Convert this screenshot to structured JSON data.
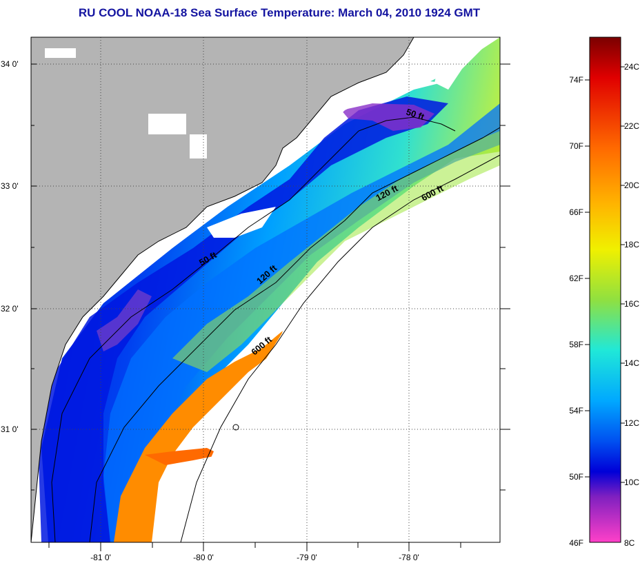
{
  "title": "RU COOL  NOAA-18  Sea Surface Temperature:  March 04, 2010 1924 GMT",
  "map": {
    "lat_labels": [
      "34 0'",
      "33 0'",
      "32 0'",
      "31 0'"
    ],
    "lon_labels": [
      "-81 0'",
      "-80 0'",
      "-79 0'",
      "-78 0'"
    ],
    "depth_contours": [
      "50 ft",
      "50 ft",
      "120 ft",
      "120 ft",
      "600 ft",
      "600 ft"
    ],
    "colors": {
      "land": "#b4b4b4",
      "cloud": "#ffffff",
      "warm": "#ff8c00",
      "cold": "#0010e0"
    }
  },
  "colorbar": {
    "fahrenheit_labels": [
      "74F",
      "70F",
      "66F",
      "62F",
      "58F",
      "54F",
      "50F",
      "46F"
    ],
    "celsius_labels": [
      "24C",
      "22C",
      "20C",
      "18C",
      "16C",
      "14C",
      "12C",
      "10C",
      "8C"
    ],
    "range_f": [
      46,
      77
    ],
    "range_c": [
      8,
      25
    ]
  }
}
